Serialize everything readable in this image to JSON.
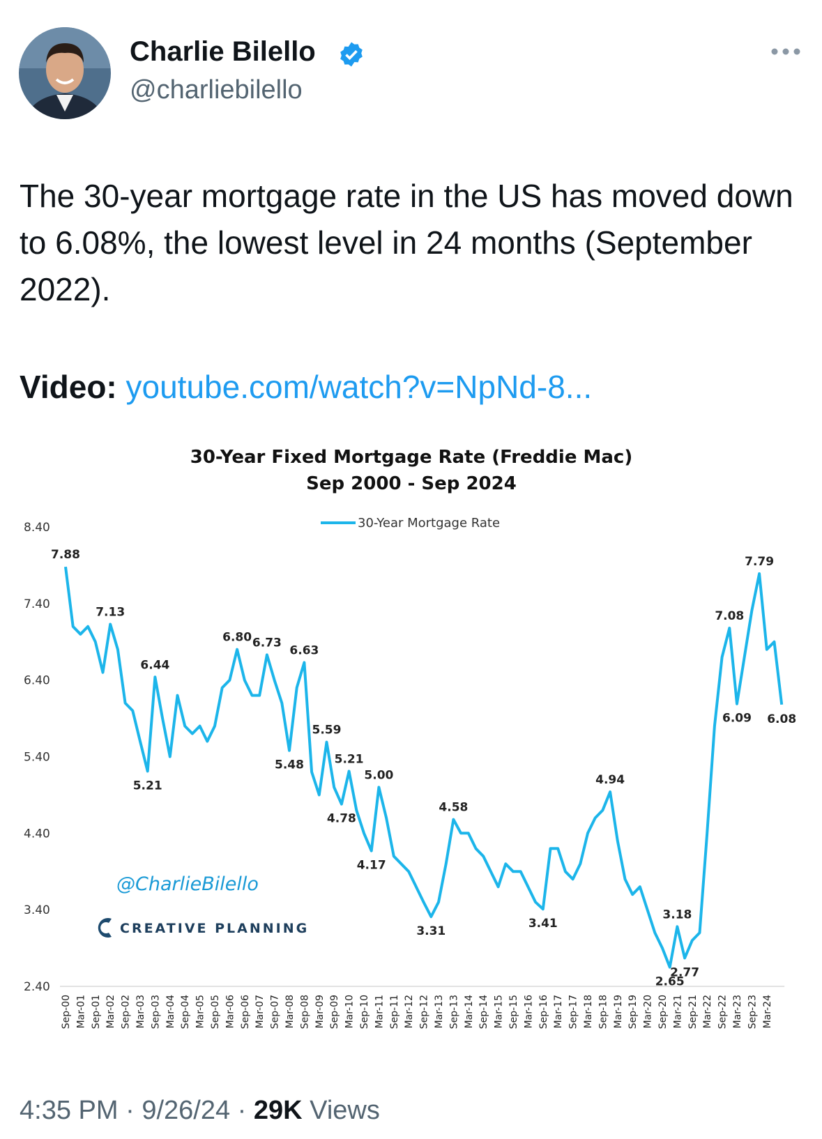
{
  "author": {
    "name": "Charlie Bilello",
    "handle": "@charliebilello"
  },
  "text": "The 30-year mortgage rate in the US has moved down to 6.08%, the lowest level in 24 months (September 2022).",
  "video": {
    "label": "Video:",
    "link": "youtube.com/watch?v=NpNd-8..."
  },
  "footer": {
    "time": "4:35 PM",
    "separator": "·",
    "date": "9/26/24",
    "views_count": "29K",
    "views_label": "Views"
  },
  "chart_data": {
    "type": "line",
    "title": "30-Year Fixed Mortgage Rate (Freddie Mac)",
    "subtitle": "Sep 2000 - Sep 2024",
    "watermark": "@CharlieBilello",
    "brand": "CREATIVE PLANNING",
    "legend": "top",
    "ylim": [
      2.4,
      8.4
    ],
    "yticks": [
      {
        "value": 2.4,
        "label": "2.40"
      },
      {
        "value": 3.4,
        "label": "3.40"
      },
      {
        "value": 4.4,
        "label": "4.40"
      },
      {
        "value": 5.4,
        "label": "5.40"
      },
      {
        "value": 6.4,
        "label": "6.40"
      },
      {
        "value": 7.4,
        "label": "7.40"
      },
      {
        "value": 8.4,
        "label": "8.40"
      }
    ],
    "categories": [
      "Sep-00",
      null,
      "Mar-01",
      null,
      "Sep-01",
      null,
      "Mar-02",
      null,
      "Sep-02",
      null,
      "Mar-03",
      null,
      "Sep-03",
      null,
      "Mar-04",
      null,
      "Sep-04",
      null,
      "Mar-05",
      null,
      "Sep-05",
      null,
      "Mar-06",
      null,
      "Sep-06",
      null,
      "Mar-07",
      null,
      "Sep-07",
      null,
      "Mar-08",
      null,
      "Sep-08",
      null,
      "Mar-09",
      null,
      "Sep-09",
      null,
      "Mar-10",
      null,
      "Sep-10",
      null,
      "Mar-11",
      null,
      "Sep-11",
      null,
      "Mar-12",
      null,
      "Sep-12",
      null,
      "Mar-13",
      null,
      "Sep-13",
      null,
      "Mar-14",
      null,
      "Sep-14",
      null,
      "Mar-15",
      null,
      "Sep-15",
      null,
      "Mar-16",
      null,
      "Sep-16",
      null,
      "Mar-17",
      null,
      "Sep-17",
      null,
      "Mar-18",
      null,
      "Sep-18",
      null,
      "Mar-19",
      null,
      "Sep-19",
      null,
      "Mar-20",
      null,
      "Sep-20",
      null,
      "Mar-21",
      null,
      "Sep-21",
      null,
      "Mar-22",
      null,
      "Sep-22",
      null,
      "Mar-23",
      null,
      "Sep-23",
      null,
      "Mar-24",
      null,
      null
    ],
    "series": [
      {
        "name": "30-Year Mortgage Rate",
        "color": "#1cb5ea",
        "values": [
          7.88,
          7.1,
          7.0,
          7.1,
          6.9,
          6.5,
          7.13,
          6.8,
          6.1,
          6.0,
          5.6,
          5.21,
          6.44,
          5.9,
          5.4,
          6.2,
          5.8,
          5.7,
          5.8,
          5.6,
          5.8,
          6.3,
          6.4,
          6.8,
          6.4,
          6.2,
          6.2,
          6.73,
          6.4,
          6.1,
          5.48,
          6.3,
          6.63,
          5.2,
          4.9,
          5.59,
          5.0,
          4.78,
          5.21,
          4.7,
          4.4,
          4.17,
          5.0,
          4.6,
          4.1,
          4.0,
          3.9,
          3.7,
          3.5,
          3.31,
          3.5,
          4.0,
          4.58,
          4.4,
          4.4,
          4.2,
          4.1,
          3.9,
          3.7,
          4.0,
          3.9,
          3.9,
          3.7,
          3.5,
          3.41,
          4.2,
          4.2,
          3.9,
          3.8,
          4.0,
          4.4,
          4.6,
          4.7,
          4.94,
          4.3,
          3.8,
          3.6,
          3.7,
          3.4,
          3.1,
          2.9,
          2.65,
          3.18,
          2.77,
          3.0,
          3.1,
          4.4,
          5.8,
          6.7,
          7.08,
          6.09,
          6.7,
          7.31,
          7.79,
          6.8,
          6.9,
          6.08
        ],
        "value_labels": [
          "7.88",
          null,
          null,
          null,
          null,
          null,
          "7.13",
          null,
          null,
          null,
          null,
          "5.21",
          "6.44",
          null,
          null,
          null,
          null,
          null,
          null,
          null,
          null,
          null,
          null,
          "6.80",
          null,
          null,
          null,
          "6.73",
          null,
          null,
          "5.48",
          null,
          "6.63",
          null,
          null,
          "5.59",
          null,
          "4.78",
          "5.21",
          null,
          null,
          "4.17",
          "5.00",
          null,
          null,
          null,
          null,
          null,
          null,
          "3.31",
          null,
          null,
          "4.58",
          null,
          null,
          null,
          null,
          null,
          null,
          null,
          null,
          null,
          null,
          null,
          "3.41",
          null,
          null,
          null,
          null,
          null,
          null,
          null,
          null,
          "4.94",
          null,
          null,
          null,
          null,
          null,
          null,
          null,
          "2.65",
          "3.18",
          "2.77",
          null,
          null,
          null,
          null,
          null,
          "7.08",
          "6.09",
          null,
          null,
          "7.79",
          null,
          null,
          "6.08"
        ]
      }
    ]
  }
}
